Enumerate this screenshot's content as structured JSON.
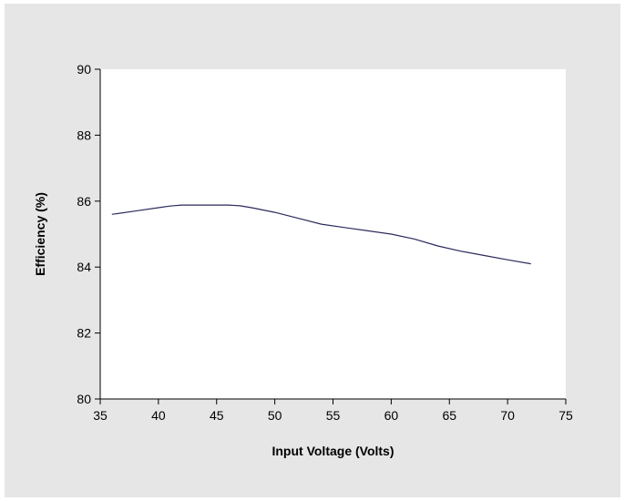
{
  "chart_data": {
    "type": "line",
    "title": "",
    "xlabel": "Input Voltage (Volts)",
    "ylabel": "Efficiency (%)",
    "xlim": [
      35,
      75
    ],
    "ylim": [
      80,
      90
    ],
    "xticks": [
      35,
      40,
      45,
      50,
      55,
      60,
      65,
      70,
      75
    ],
    "yticks": [
      80,
      82,
      84,
      86,
      88,
      90
    ],
    "grid": false,
    "legend": "none",
    "series": [
      {
        "color": "#2b2a5c",
        "x": [
          36,
          38,
          40,
          41,
          42,
          44,
          46,
          47,
          48,
          50,
          52,
          54,
          56,
          58,
          60,
          62,
          64,
          66,
          68,
          70,
          72
        ],
        "y": [
          85.6,
          85.7,
          85.8,
          85.85,
          85.88,
          85.88,
          85.88,
          85.86,
          85.8,
          85.66,
          85.48,
          85.3,
          85.2,
          85.1,
          85.0,
          84.85,
          84.64,
          84.48,
          84.35,
          84.22,
          84.1
        ]
      }
    ]
  },
  "colors": {
    "panel_background": "#e6e6e6",
    "plot_background": "#ffffff",
    "axis": "#000000"
  }
}
